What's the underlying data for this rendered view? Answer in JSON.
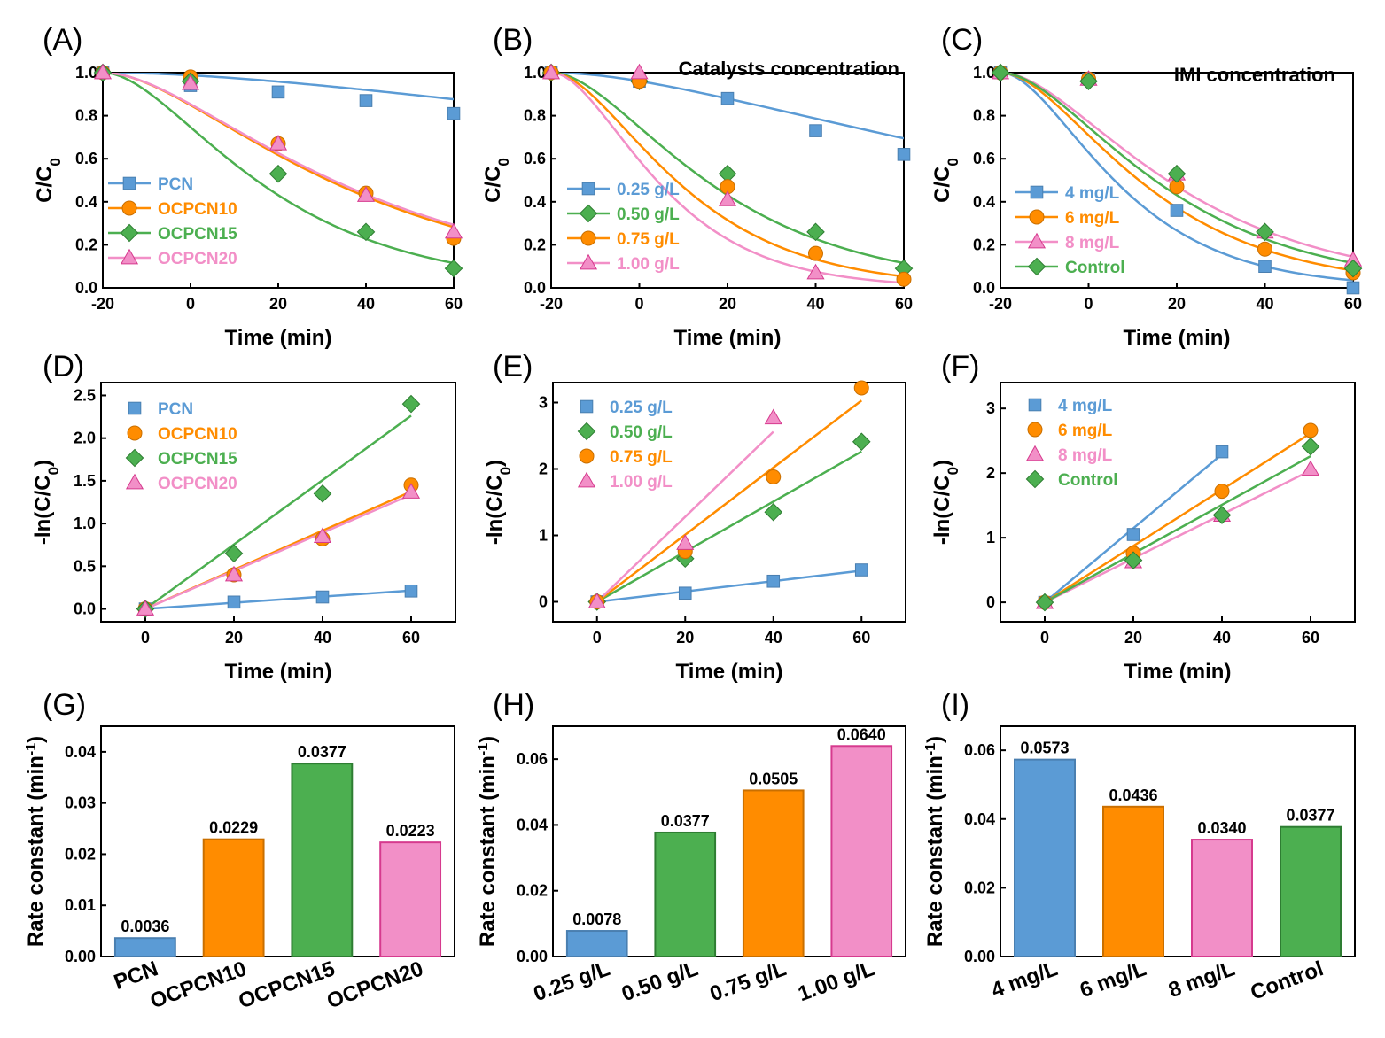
{
  "colors": {
    "blue": "#5b9bd5",
    "orange": "#ff8c00",
    "green": "#4caf50",
    "pink": "#f28fc7",
    "blue_edge": "#4a7fb0",
    "orange_edge": "#c96f00",
    "green_edge": "#2e7d32",
    "pink_edge": "#d63a8e"
  },
  "chart_data": [
    {
      "panel": "(A)",
      "type": "line",
      "title": "",
      "xlabel": "Time (min)",
      "ylabel": "C/C0",
      "xlim": [
        -20,
        60
      ],
      "ylim": [
        0,
        1.0
      ],
      "xticks": [
        -20,
        0,
        20,
        40,
        60
      ],
      "yticks": [
        0.0,
        0.2,
        0.4,
        0.6,
        0.8,
        1.0
      ],
      "legend_position": "bottom-left",
      "series": [
        {
          "name": "PCN",
          "color": "blue",
          "marker": "square",
          "x": [
            -20,
            0,
            20,
            40,
            60
          ],
          "y": [
            1.0,
            0.94,
            0.91,
            0.87,
            0.81
          ],
          "fit_k": 0.0036
        },
        {
          "name": "OCPCN10",
          "color": "orange",
          "marker": "circle",
          "x": [
            -20,
            0,
            20,
            40,
            60
          ],
          "y": [
            1.0,
            0.98,
            0.67,
            0.44,
            0.23
          ],
          "fit_k": 0.0229
        },
        {
          "name": "OCPCN15",
          "color": "green",
          "marker": "diamond",
          "x": [
            -20,
            0,
            20,
            40,
            60
          ],
          "y": [
            1.0,
            0.96,
            0.53,
            0.26,
            0.09
          ],
          "fit_k": 0.0377
        },
        {
          "name": "OCPCN20",
          "color": "pink",
          "marker": "triangle",
          "x": [
            -20,
            0,
            20,
            40,
            60
          ],
          "y": [
            1.0,
            0.95,
            0.67,
            0.43,
            0.26
          ],
          "fit_k": 0.0223
        }
      ]
    },
    {
      "panel": "(B)",
      "type": "line",
      "title": "Catalysts concentration",
      "xlabel": "Time (min)",
      "ylabel": "C/C0",
      "xlim": [
        -20,
        60
      ],
      "ylim": [
        0,
        1.0
      ],
      "xticks": [
        -20,
        0,
        20,
        40,
        60
      ],
      "yticks": [
        0.0,
        0.2,
        0.4,
        0.6,
        0.8,
        1.0
      ],
      "legend_position": "bottom-left",
      "series": [
        {
          "name": "0.25 g/L",
          "color": "blue",
          "marker": "square",
          "x": [
            -20,
            0,
            20,
            40,
            60
          ],
          "y": [
            1.0,
            0.96,
            0.88,
            0.73,
            0.62
          ],
          "fit_k": 0.0078
        },
        {
          "name": "0.50 g/L",
          "color": "green",
          "marker": "diamond",
          "x": [
            -20,
            0,
            20,
            40,
            60
          ],
          "y": [
            1.0,
            0.96,
            0.53,
            0.26,
            0.09
          ],
          "fit_k": 0.0377
        },
        {
          "name": "0.75 g/L",
          "color": "orange",
          "marker": "circle",
          "x": [
            -20,
            0,
            20,
            40,
            60
          ],
          "y": [
            1.0,
            0.96,
            0.47,
            0.16,
            0.04
          ],
          "fit_k": 0.0505
        },
        {
          "name": "1.00 g/L",
          "color": "pink",
          "marker": "triangle",
          "x": [
            -20,
            0,
            20,
            40
          ],
          "y": [
            1.0,
            1.0,
            0.41,
            0.07
          ],
          "fit_k": 0.064
        }
      ]
    },
    {
      "panel": "(C)",
      "type": "line",
      "title": "IMI concentration",
      "xlabel": "Time (min)",
      "ylabel": "C/C0",
      "xlim": [
        -20,
        60
      ],
      "ylim": [
        0,
        1.0
      ],
      "xticks": [
        -20,
        0,
        20,
        40,
        60
      ],
      "yticks": [
        0.0,
        0.2,
        0.4,
        0.6,
        0.8,
        1.0
      ],
      "legend_position": "bottom-left",
      "series": [
        {
          "name": "4 mg/L",
          "color": "blue",
          "marker": "square",
          "x": [
            -20,
            0,
            20,
            40,
            60
          ],
          "y": [
            1.0,
            0.97,
            0.36,
            0.1,
            0.0
          ],
          "fit_k": 0.0573
        },
        {
          "name": "6 mg/L",
          "color": "orange",
          "marker": "circle",
          "x": [
            -20,
            0,
            20,
            40,
            60
          ],
          "y": [
            1.0,
            0.97,
            0.47,
            0.18,
            0.07
          ],
          "fit_k": 0.0436
        },
        {
          "name": "8 mg/L",
          "color": "pink",
          "marker": "triangle",
          "x": [
            -20,
            0,
            20,
            40,
            60
          ],
          "y": [
            1.0,
            0.97,
            0.53,
            0.26,
            0.13
          ],
          "fit_k": 0.034
        },
        {
          "name": "Control",
          "color": "green",
          "marker": "diamond",
          "x": [
            -20,
            0,
            20,
            40,
            60
          ],
          "y": [
            1.0,
            0.96,
            0.53,
            0.26,
            0.09
          ],
          "fit_k": 0.0377
        }
      ]
    },
    {
      "panel": "(D)",
      "type": "scatter",
      "title": "",
      "xlabel": "Time (min)",
      "ylabel": "-ln(C/C0)",
      "xlim": [
        -10,
        70
      ],
      "ylim": [
        -0.15,
        2.65
      ],
      "xticks": [
        0,
        20,
        40,
        60
      ],
      "yticks": [
        0.0,
        0.5,
        1.0,
        1.5,
        2.0,
        2.5
      ],
      "legend_position": "top-left",
      "series": [
        {
          "name": "PCN",
          "color": "blue",
          "marker": "square",
          "x": [
            0,
            20,
            40,
            60
          ],
          "y": [
            0,
            0.08,
            0.14,
            0.21
          ],
          "fit_k": 0.0036
        },
        {
          "name": "OCPCN10",
          "color": "orange",
          "marker": "circle",
          "x": [
            0,
            20,
            40,
            60
          ],
          "y": [
            0,
            0.4,
            0.82,
            1.45
          ],
          "fit_k": 0.0229
        },
        {
          "name": "OCPCN15",
          "color": "green",
          "marker": "diamond",
          "x": [
            0,
            20,
            40,
            60
          ],
          "y": [
            0,
            0.65,
            1.35,
            2.4
          ],
          "fit_k": 0.0377
        },
        {
          "name": "OCPCN20",
          "color": "pink",
          "marker": "triangle",
          "x": [
            0,
            20,
            40,
            60
          ],
          "y": [
            0,
            0.4,
            0.85,
            1.37
          ],
          "fit_k": 0.0223
        }
      ]
    },
    {
      "panel": "(E)",
      "type": "scatter",
      "title": "",
      "xlabel": "Time (min)",
      "ylabel": "-ln(C/C0)",
      "xlim": [
        -10,
        70
      ],
      "ylim": [
        -0.3,
        3.3
      ],
      "xticks": [
        0,
        20,
        40,
        60
      ],
      "yticks": [
        0,
        1,
        2,
        3
      ],
      "legend_position": "top-left",
      "series": [
        {
          "name": "0.25 g/L",
          "color": "blue",
          "marker": "square",
          "x": [
            0,
            20,
            40,
            60
          ],
          "y": [
            0,
            0.13,
            0.31,
            0.48
          ],
          "fit_k": 0.0078
        },
        {
          "name": "0.50 g/L",
          "color": "green",
          "marker": "diamond",
          "x": [
            0,
            20,
            40,
            60
          ],
          "y": [
            0,
            0.65,
            1.35,
            2.41
          ],
          "fit_k": 0.0377
        },
        {
          "name": "0.75 g/L",
          "color": "orange",
          "marker": "circle",
          "x": [
            0,
            20,
            40,
            60
          ],
          "y": [
            0,
            0.76,
            1.88,
            3.22
          ],
          "fit_k": 0.0505
        },
        {
          "name": "1.00 g/L",
          "color": "pink",
          "marker": "triangle",
          "x": [
            0,
            20,
            40
          ],
          "y": [
            0,
            0.88,
            2.77
          ],
          "fit_k": 0.064
        }
      ]
    },
    {
      "panel": "(F)",
      "type": "scatter",
      "title": "",
      "xlabel": "Time (min)",
      "ylabel": "-ln(C/C0)",
      "xlim": [
        -10,
        70
      ],
      "ylim": [
        -0.3,
        3.4
      ],
      "xticks": [
        0,
        20,
        40,
        60
      ],
      "yticks": [
        0,
        1,
        2,
        3
      ],
      "legend_position": "top-left",
      "series": [
        {
          "name": "4 mg/L",
          "color": "blue",
          "marker": "square",
          "x": [
            0,
            20,
            40
          ],
          "y": [
            0,
            1.05,
            2.33
          ],
          "fit_k": 0.0573
        },
        {
          "name": "6 mg/L",
          "color": "orange",
          "marker": "circle",
          "x": [
            0,
            20,
            40,
            60
          ],
          "y": [
            0,
            0.76,
            1.72,
            2.66
          ],
          "fit_k": 0.0436
        },
        {
          "name": "8 mg/L",
          "color": "pink",
          "marker": "triangle",
          "x": [
            0,
            20,
            40,
            60
          ],
          "y": [
            0,
            0.63,
            1.35,
            2.06
          ],
          "fit_k": 0.034
        },
        {
          "name": "Control",
          "color": "green",
          "marker": "diamond",
          "x": [
            0,
            20,
            40,
            60
          ],
          "y": [
            0,
            0.65,
            1.35,
            2.41
          ],
          "fit_k": 0.0377
        }
      ]
    },
    {
      "panel": "(G)",
      "type": "bar",
      "title": "",
      "xlabel": "",
      "ylabel": "Rate constant (min-1)",
      "ylim": [
        0,
        0.045
      ],
      "yticks": [
        0.0,
        0.01,
        0.02,
        0.03,
        0.04
      ],
      "ytick_labels": [
        "0.00",
        "0.01",
        "0.02",
        "0.03",
        "0.04"
      ],
      "categories": [
        "PCN",
        "OCPCN10",
        "OCPCN15",
        "OCPCN20"
      ],
      "values": [
        0.0036,
        0.0229,
        0.0377,
        0.0223
      ],
      "value_labels": [
        "0.0036",
        "0.0229",
        "0.0377",
        "0.0223"
      ],
      "bar_colors": [
        "blue",
        "orange",
        "green",
        "pink"
      ]
    },
    {
      "panel": "(H)",
      "type": "bar",
      "title": "",
      "xlabel": "",
      "ylabel": "Rate constant (min-1)",
      "ylim": [
        0,
        0.07
      ],
      "yticks": [
        0.0,
        0.02,
        0.04,
        0.06
      ],
      "ytick_labels": [
        "0.00",
        "0.02",
        "0.04",
        "0.06"
      ],
      "categories": [
        "0.25 g/L",
        "0.50 g/L",
        "0.75 g/L",
        "1.00 g/L"
      ],
      "values": [
        0.0078,
        0.0377,
        0.0505,
        0.064
      ],
      "value_labels": [
        "0.0078",
        "0.0377",
        "0.0505",
        "0.0640"
      ],
      "bar_colors": [
        "blue",
        "green",
        "orange",
        "pink"
      ]
    },
    {
      "panel": "(I)",
      "type": "bar",
      "title": "",
      "xlabel": "",
      "ylabel": "Rate constant (min-1)",
      "ylim": [
        0,
        0.067
      ],
      "yticks": [
        0.0,
        0.02,
        0.04,
        0.06
      ],
      "ytick_labels": [
        "0.00",
        "0.02",
        "0.04",
        "0.06"
      ],
      "categories": [
        "4 mg/L",
        "6 mg/L",
        "8 mg/L",
        "Control"
      ],
      "values": [
        0.0573,
        0.0436,
        0.034,
        0.0377
      ],
      "value_labels": [
        "0.0573",
        "0.0436",
        "0.0340",
        "0.0377"
      ],
      "bar_colors": [
        "blue",
        "orange",
        "pink",
        "green"
      ]
    }
  ]
}
